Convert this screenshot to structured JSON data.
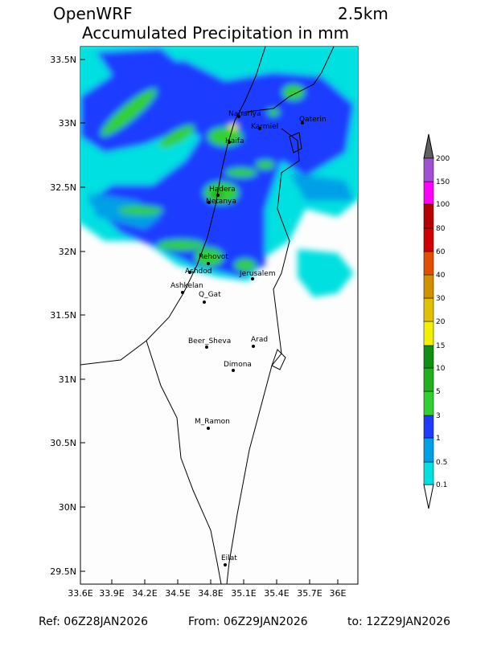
{
  "header": {
    "model": "OpenWRF",
    "resolution": "2.5km",
    "title": "Accumulated Precipitation in mm"
  },
  "map": {
    "lat_labels": [
      "33.5N",
      "33N",
      "32.5N",
      "32N",
      "31.5N",
      "31N",
      "30.5N",
      "30N",
      "29.5N"
    ],
    "lon_labels": [
      "33.6E",
      "33.9E",
      "34.2E",
      "34.5E",
      "34.8E",
      "35.1E",
      "35.4E",
      "35.7E",
      "36E"
    ],
    "cities": [
      "Nahariya",
      "Karmiel",
      "Qaterin",
      "Haifa",
      "Hadera",
      "Netanya",
      "Rehovot",
      "Ashdod",
      "Jerusalem",
      "Ashkelan",
      "Q_Gat",
      "Beer_Sheva",
      "Arad",
      "Dimona",
      "M_Ramon",
      "Eilat"
    ]
  },
  "legend": {
    "labels": [
      "0.1",
      "0.5",
      "1",
      "3",
      "5",
      "10",
      "15",
      "20",
      "30",
      "40",
      "60",
      "80",
      "100",
      "150",
      "200"
    ]
  },
  "footer": {
    "ref": "Ref: 06Z28JAN2026",
    "from": "From: 06Z29JAN2026",
    "to": "to: 12Z29JAN2026"
  }
}
